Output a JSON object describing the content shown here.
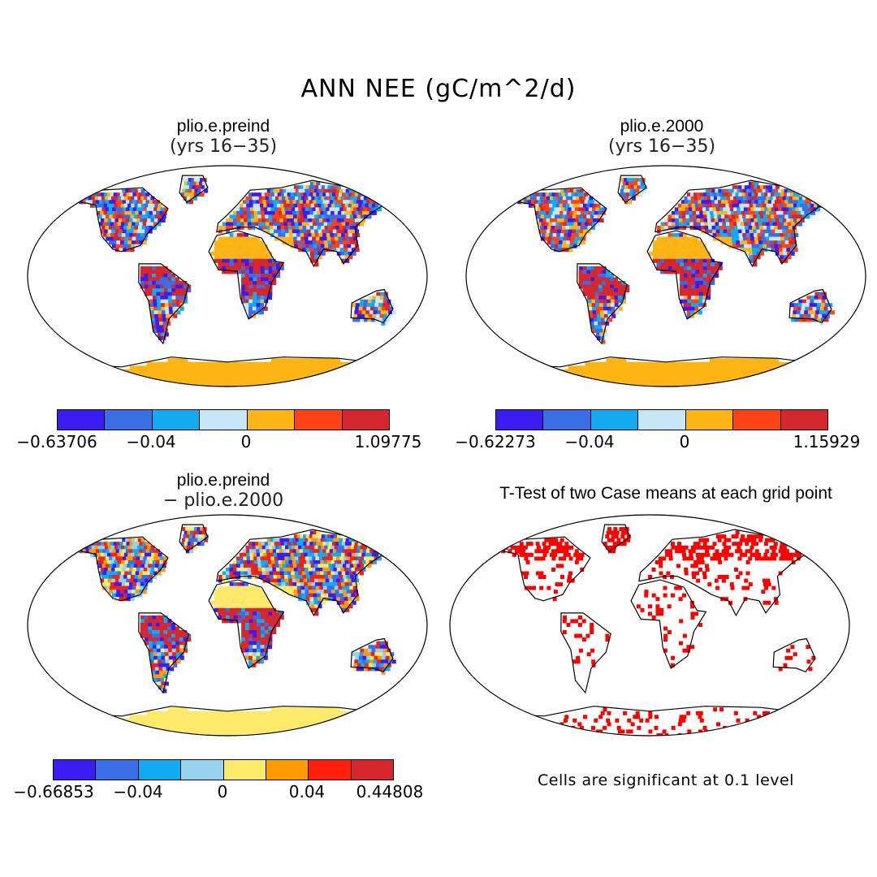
{
  "title": "ANN NEE (gC/m^2/d)",
  "panels": [
    {
      "title": "plio.e.preind",
      "subtitle": "(yrs 16−35)",
      "palette": [
        "#3b1cf2",
        "#3a6ee6",
        "#12aaf0",
        "#c6e7f5",
        "#fdb515",
        "#ff4215",
        "#d6262e"
      ],
      "colorbar_labels": [
        "−0.63706",
        "−0.04",
        "0",
        "1.09775"
      ]
    },
    {
      "title": "plio.e.2000",
      "subtitle": "(yrs 16−35)",
      "palette": [
        "#3b1cf2",
        "#3a6ee6",
        "#12aaf0",
        "#c6e7f5",
        "#fdb515",
        "#ff4215",
        "#d6262e"
      ],
      "colorbar_labels": [
        "−0.62273",
        "−0.04",
        "0",
        "1.15929"
      ]
    },
    {
      "title": "plio.e.preind",
      "subtitle": "− plio.e.2000",
      "palette": [
        "#3b1cf2",
        "#3a6ee6",
        "#12aaf0",
        "#96d1f0",
        "#fde96a",
        "#ff9a00",
        "#ff1f0a",
        "#d6262e"
      ],
      "colorbar_labels": [
        "−0.66853",
        "−0.04",
        "0",
        "0.04",
        "0.44808"
      ]
    },
    {
      "title": "T-Test of two Case means at each grid point",
      "note": "Cells are significant at 0.1 level",
      "sig_color": "#ff0000"
    }
  ]
}
